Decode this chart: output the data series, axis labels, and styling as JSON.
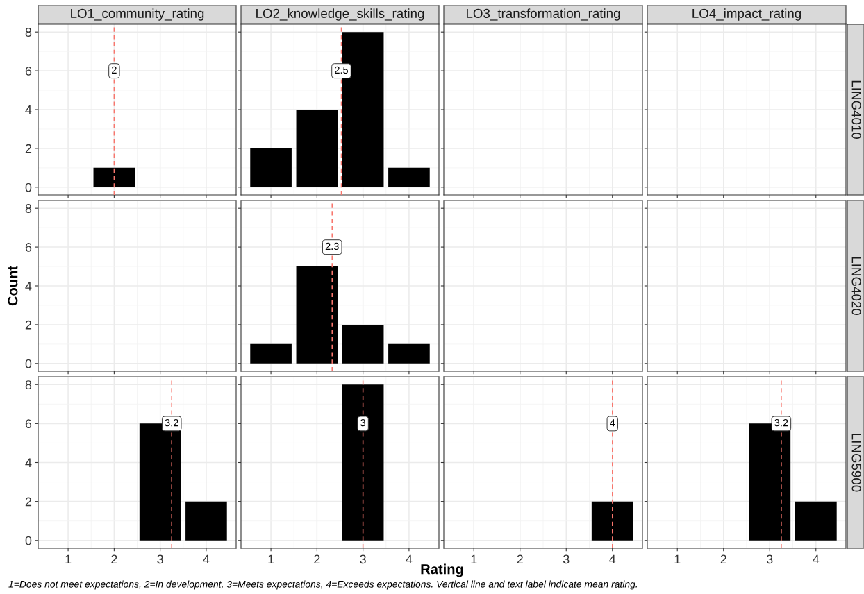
{
  "chart_data": [
    {
      "type": "bar",
      "title": "LO1_community_rating",
      "x": [
        2
      ],
      "values": [
        1
      ],
      "color": "#000000",
      "xlim": [
        0.35,
        4.65
      ],
      "xticks": [
        1,
        2,
        3,
        4
      ],
      "ylim": [
        -0.4,
        8.4
      ],
      "yticks": [
        0,
        2,
        4,
        6,
        8
      ],
      "grid": true,
      "tick_labels": "y",
      "ref_lines": [
        {
          "axis": "x",
          "value": 2,
          "label": "2",
          "color": "#f8766d",
          "line_style": "dashed"
        }
      ]
    },
    {
      "type": "bar",
      "title": "LO2_knowledge_skills_rating",
      "x": [
        1,
        2,
        3,
        4
      ],
      "values": [
        2,
        4,
        8,
        1
      ],
      "color": "#000000",
      "xlim": [
        0.35,
        4.65
      ],
      "xticks": [
        1,
        2,
        3,
        4
      ],
      "ylim": [
        -0.4,
        8.4
      ],
      "yticks": [
        0,
        2,
        4,
        6,
        8
      ],
      "grid": true,
      "tick_labels": false,
      "ref_lines": [
        {
          "axis": "x",
          "value": 2.53,
          "label": "2.5",
          "color": "#f8766d",
          "line_style": "dashed"
        }
      ]
    },
    {
      "type": "bar",
      "title": "LO3_transformation_rating",
      "xlim": [
        0.35,
        4.65
      ],
      "xticks": [
        1,
        2,
        3,
        4
      ],
      "ylim": [
        -0.4,
        8.4
      ],
      "yticks": [
        0,
        2,
        4,
        6,
        8
      ],
      "grid": true,
      "tick_labels": false
    },
    {
      "type": "bar",
      "title": "LO4_impact_rating",
      "subtitle": "LING4010",
      "xlim": [
        0.35,
        4.65
      ],
      "xticks": [
        1,
        2,
        3,
        4
      ],
      "ylim": [
        -0.4,
        8.4
      ],
      "yticks": [
        0,
        2,
        4,
        6,
        8
      ],
      "grid": true,
      "tick_labels": false
    },
    {
      "type": "bar",
      "ylabel": "Count",
      "xlim": [
        0.35,
        4.65
      ],
      "xticks": [
        1,
        2,
        3,
        4
      ],
      "ylim": [
        -0.4,
        8.4
      ],
      "yticks": [
        0,
        2,
        4,
        6,
        8
      ],
      "grid": true,
      "tick_labels": "y"
    },
    {
      "type": "bar",
      "x": [
        1,
        2,
        3,
        4
      ],
      "values": [
        1,
        5,
        2,
        1
      ],
      "color": "#000000",
      "xlim": [
        0.35,
        4.65
      ],
      "xticks": [
        1,
        2,
        3,
        4
      ],
      "ylim": [
        -0.4,
        8.4
      ],
      "yticks": [
        0,
        2,
        4,
        6,
        8
      ],
      "grid": true,
      "tick_labels": false,
      "ref_lines": [
        {
          "axis": "x",
          "value": 2.33,
          "label": "2.3",
          "color": "#f8766d",
          "line_style": "dashed"
        }
      ]
    },
    {
      "type": "bar",
      "xlim": [
        0.35,
        4.65
      ],
      "xticks": [
        1,
        2,
        3,
        4
      ],
      "ylim": [
        -0.4,
        8.4
      ],
      "yticks": [
        0,
        2,
        4,
        6,
        8
      ],
      "grid": true,
      "tick_labels": false
    },
    {
      "type": "bar",
      "subtitle": "LING4020",
      "xlim": [
        0.35,
        4.65
      ],
      "xticks": [
        1,
        2,
        3,
        4
      ],
      "ylim": [
        -0.4,
        8.4
      ],
      "yticks": [
        0,
        2,
        4,
        6,
        8
      ],
      "grid": true,
      "tick_labels": false
    },
    {
      "type": "bar",
      "x": [
        3,
        4
      ],
      "values": [
        6,
        2
      ],
      "color": "#000000",
      "xlim": [
        0.35,
        4.65
      ],
      "xticks": [
        1,
        2,
        3,
        4
      ],
      "ylim": [
        -0.4,
        8.4
      ],
      "yticks": [
        0,
        2,
        4,
        6,
        8
      ],
      "grid": true,
      "annotations": [
        "1=Does not meet expectations, 2=In development, 3=Meets expectations, 4=Exceeds expectations. Vertical line and text label indicate mean rating."
      ],
      "ref_lines": [
        {
          "axis": "x",
          "value": 3.25,
          "label": "3.2",
          "color": "#f8766d",
          "line_style": "dashed"
        }
      ]
    },
    {
      "type": "bar",
      "xlabel": "Rating",
      "x": [
        3
      ],
      "values": [
        8
      ],
      "color": "#000000",
      "xlim": [
        0.35,
        4.65
      ],
      "xticks": [
        1,
        2,
        3,
        4
      ],
      "ylim": [
        -0.4,
        8.4
      ],
      "yticks": [
        0,
        2,
        4,
        6,
        8
      ],
      "grid": true,
      "tick_labels": "x",
      "ref_lines": [
        {
          "axis": "x",
          "value": 3,
          "label": "3",
          "color": "#f8766d",
          "line_style": "dashed"
        }
      ]
    },
    {
      "type": "bar",
      "x": [
        4
      ],
      "values": [
        2
      ],
      "color": "#000000",
      "xlim": [
        0.35,
        4.65
      ],
      "xticks": [
        1,
        2,
        3,
        4
      ],
      "ylim": [
        -0.4,
        8.4
      ],
      "yticks": [
        0,
        2,
        4,
        6,
        8
      ],
      "grid": true,
      "tick_labels": "x",
      "ref_lines": [
        {
          "axis": "x",
          "value": 4,
          "label": "4",
          "color": "#f8766d",
          "line_style": "dashed"
        }
      ]
    },
    {
      "type": "bar",
      "subtitle": "LING5900",
      "x": [
        3,
        4
      ],
      "values": [
        6,
        2
      ],
      "color": "#000000",
      "xlim": [
        0.35,
        4.65
      ],
      "xticks": [
        1,
        2,
        3,
        4
      ],
      "ylim": [
        -0.4,
        8.4
      ],
      "yticks": [
        0,
        2,
        4,
        6,
        8
      ],
      "grid": true,
      "tick_labels": "x",
      "ref_lines": [
        {
          "axis": "x",
          "value": 3.25,
          "label": "3.2",
          "color": "#f8766d",
          "line_style": "dashed"
        }
      ]
    }
  ]
}
